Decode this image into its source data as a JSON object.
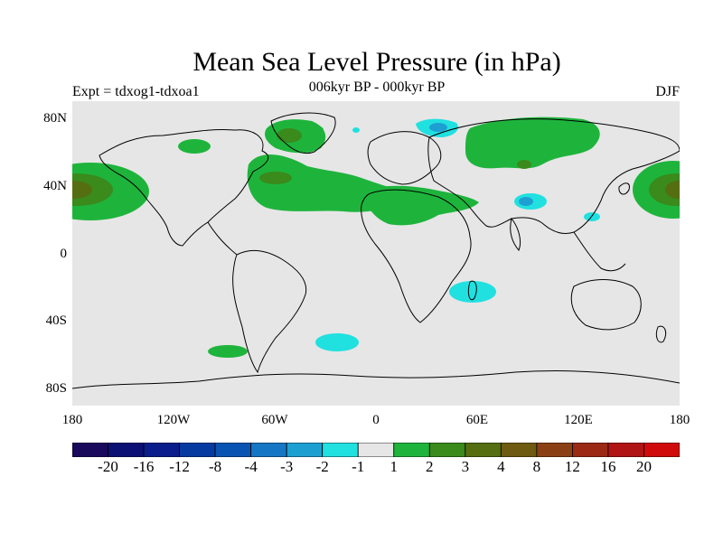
{
  "title": "Mean Sea Level Pressure (in hPa)",
  "subtitle": "006kyr BP - 000kyr BP",
  "experiment_label": "Expt = tdxog1-tdxoa1",
  "season_label": "DJF",
  "lat_ticks": [
    "80N",
    "40N",
    "0",
    "40S",
    "80S"
  ],
  "lon_ticks": [
    "180",
    "120W",
    "60W",
    "0",
    "60E",
    "120E",
    "180"
  ],
  "colorbar": {
    "labels": [
      "-20",
      "-16",
      "-12",
      "-8",
      "-4",
      "-3",
      "-2",
      "-1",
      "1",
      "2",
      "3",
      "4",
      "8",
      "12",
      "16",
      "20"
    ],
    "colors": [
      "#1a0a5c",
      "#0c0f74",
      "#0a1d8a",
      "#063aa0",
      "#0954b2",
      "#1576c4",
      "#1d9fd2",
      "#21e0e0",
      "#e6e6e6",
      "#1eb43c",
      "#3a8a1c",
      "#556e10",
      "#6e5a10",
      "#8a4014",
      "#9a2a14",
      "#b01414",
      "#d00a0a"
    ]
  },
  "colors": {
    "ocean_neutral": "#e6e6e6",
    "positive_1_2": "#1eb43c",
    "positive_2_3": "#3a8a1c",
    "positive_3_4": "#556e10",
    "negative_1_2": "#21e0e0",
    "negative_2_3": "#1d9fd2",
    "coast": "#000000"
  }
}
